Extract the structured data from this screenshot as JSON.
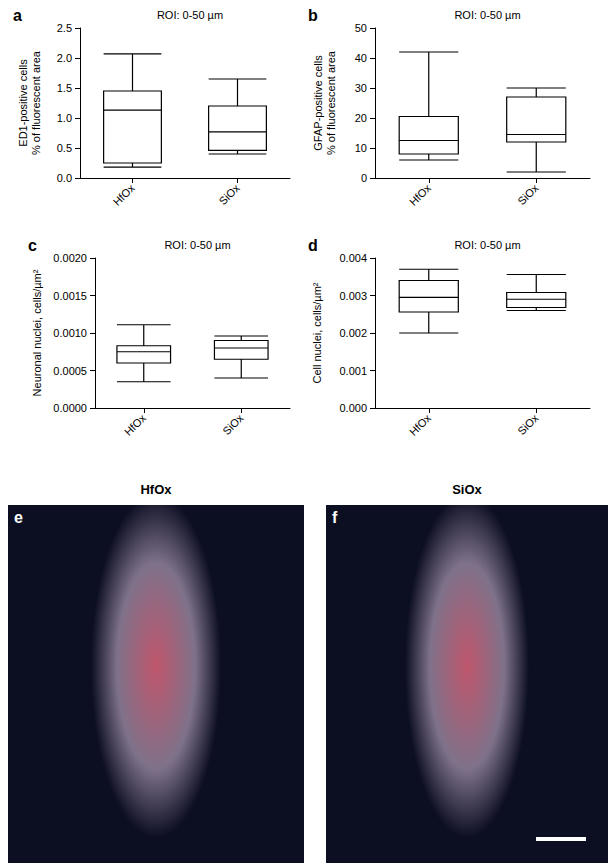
{
  "chart_data": [
    {
      "type": "boxplot",
      "panel": "a",
      "title": "ROI: 0-50 µm",
      "y_label": "ED1-positive cells\n% of fluorescent area",
      "categories": [
        "HfOx",
        "SiOx"
      ],
      "values": [
        [
          0.18,
          0.25,
          1.13,
          1.45,
          2.07
        ],
        [
          0.4,
          0.46,
          0.77,
          1.2,
          1.65
        ]
      ],
      "ylim": [
        0,
        2.5
      ],
      "yticks": [
        {
          "value": 0,
          "label": "0.0"
        },
        0.5,
        {
          "value": 1,
          "label": "1.0"
        },
        1.5,
        {
          "value": 2,
          "label": "2.0"
        },
        2.5
      ]
    },
    {
      "type": "boxplot",
      "panel": "b",
      "title": "ROI: 0-50 µm",
      "y_label": "GFAP-positive cells\n% of fluorescent area",
      "categories": [
        "HfOx",
        "SiOx"
      ],
      "values": [
        [
          6,
          8,
          12.5,
          20.5,
          42
        ],
        [
          2,
          12,
          14.5,
          27,
          30
        ]
      ],
      "ylim": [
        0,
        50
      ],
      "yticks": [
        0,
        10,
        20,
        30,
        40,
        50
      ]
    },
    {
      "type": "boxplot",
      "panel": "c",
      "title": "ROI: 0-50 µm",
      "y_label": "Neuronal nuclei, cells/µm²",
      "categories": [
        "HfOx",
        "SiOx"
      ],
      "values": [
        [
          0.00035,
          0.0006,
          0.00075,
          0.00083,
          0.00111
        ],
        [
          0.0004,
          0.00065,
          0.0008,
          0.0009,
          0.00096
        ]
      ],
      "ylim": [
        0,
        0.002
      ],
      "yticks": [
        {
          "value": 0,
          "label": "0.0000"
        },
        {
          "value": 0.0005,
          "label": "0.0005"
        },
        {
          "value": 0.001,
          "label": "0.0010"
        },
        {
          "value": 0.0015,
          "label": "0.0015"
        },
        {
          "value": 0.002,
          "label": "0.0020"
        }
      ]
    },
    {
      "type": "boxplot",
      "panel": "d",
      "title": "ROI: 0-50 µm",
      "y_label": "Cell nuclei, cells/µm²",
      "categories": [
        "HfOx",
        "SiOx"
      ],
      "values": [
        [
          0.002,
          0.00256,
          0.00295,
          0.0034,
          0.0037
        ],
        [
          0.0026,
          0.00268,
          0.0029,
          0.00308,
          0.00356
        ]
      ],
      "ylim": [
        0,
        0.004
      ],
      "yticks": [
        {
          "value": 0,
          "label": "0.000"
        },
        {
          "value": 0.001,
          "label": "0.001"
        },
        {
          "value": 0.002,
          "label": "0.002"
        },
        {
          "value": 0.003,
          "label": "0.003"
        },
        {
          "value": 0.004,
          "label": "0.004"
        }
      ]
    }
  ],
  "images": [
    {
      "panel": "e",
      "title": "HfOx"
    },
    {
      "panel": "f",
      "title": "SiOx"
    }
  ]
}
